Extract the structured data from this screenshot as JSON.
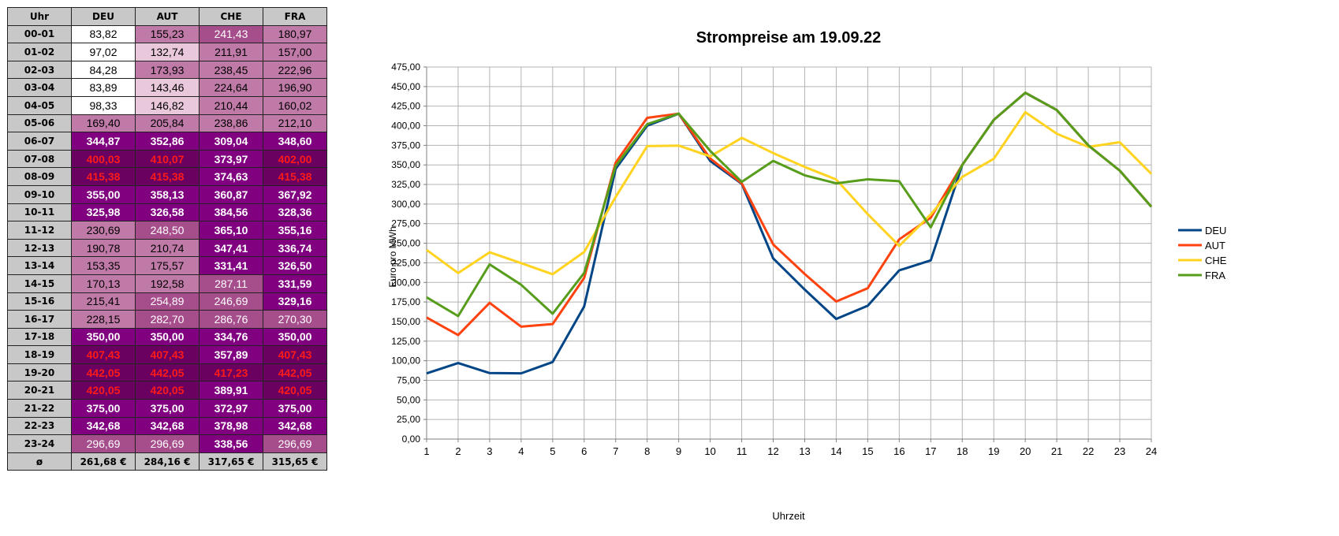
{
  "table": {
    "header": [
      "Uhr",
      "DEU",
      "AUT",
      "CHE",
      "FRA"
    ],
    "rows": [
      [
        "00-01",
        "83,82",
        "155,23",
        "241,43",
        "180,97"
      ],
      [
        "01-02",
        "97,02",
        "132,74",
        "211,91",
        "157,00"
      ],
      [
        "02-03",
        "84,28",
        "173,93",
        "238,45",
        "222,96"
      ],
      [
        "03-04",
        "83,89",
        "143,46",
        "224,64",
        "196,90"
      ],
      [
        "04-05",
        "98,33",
        "146,82",
        "210,44",
        "160,02"
      ],
      [
        "05-06",
        "169,40",
        "205,84",
        "238,86",
        "212,10"
      ],
      [
        "06-07",
        "344,87",
        "352,86",
        "309,04",
        "348,60"
      ],
      [
        "07-08",
        "400,03",
        "410,07",
        "373,97",
        "402,00"
      ],
      [
        "08-09",
        "415,38",
        "415,38",
        "374,63",
        "415,38"
      ],
      [
        "09-10",
        "355,00",
        "358,13",
        "360,87",
        "367,92"
      ],
      [
        "10-11",
        "325,98",
        "326,58",
        "384,56",
        "328,36"
      ],
      [
        "11-12",
        "230,69",
        "248,50",
        "365,10",
        "355,16"
      ],
      [
        "12-13",
        "190,78",
        "210,74",
        "347,41",
        "336,74"
      ],
      [
        "13-14",
        "153,35",
        "175,57",
        "331,41",
        "326,50"
      ],
      [
        "14-15",
        "170,13",
        "192,58",
        "287,11",
        "331,59"
      ],
      [
        "15-16",
        "215,41",
        "254,89",
        "246,69",
        "329,16"
      ],
      [
        "16-17",
        "228,15",
        "282,70",
        "286,76",
        "270,30"
      ],
      [
        "17-18",
        "350,00",
        "350,00",
        "334,76",
        "350,00"
      ],
      [
        "18-19",
        "407,43",
        "407,43",
        "357,89",
        "407,43"
      ],
      [
        "19-20",
        "442,05",
        "442,05",
        "417,23",
        "442,05"
      ],
      [
        "20-21",
        "420,05",
        "420,05",
        "389,91",
        "420,05"
      ],
      [
        "21-22",
        "375,00",
        "375,00",
        "372,97",
        "375,00"
      ],
      [
        "22-23",
        "342,68",
        "342,68",
        "378,98",
        "342,68"
      ],
      [
        "23-24",
        "296,69",
        "296,69",
        "338,56",
        "296,69"
      ]
    ],
    "footer": [
      "ø",
      "261,68 €",
      "284,16 €",
      "317,65 €",
      "315,65 €"
    ]
  },
  "chart_data": {
    "type": "line",
    "title": "Strompreise am 19.09.22",
    "xlabel": "Uhrzeit",
    "ylabel": "Euro pro MWh",
    "x": [
      1,
      2,
      3,
      4,
      5,
      6,
      7,
      8,
      9,
      10,
      11,
      12,
      13,
      14,
      15,
      16,
      17,
      18,
      19,
      20,
      21,
      22,
      23,
      24
    ],
    "xlim": [
      1,
      24
    ],
    "ylim": [
      0,
      475
    ],
    "ytick_step": 25,
    "ytick_labels": [
      "0,00",
      "25,00",
      "50,00",
      "75,00",
      "100,00",
      "125,00",
      "150,00",
      "175,00",
      "200,00",
      "225,00",
      "250,00",
      "275,00",
      "300,00",
      "325,00",
      "350,00",
      "375,00",
      "400,00",
      "425,00",
      "450,00",
      "475,00"
    ],
    "grid": true,
    "legend_position": "right",
    "series": [
      {
        "name": "DEU",
        "color": "#004586",
        "values": [
          83.82,
          97.02,
          84.28,
          83.89,
          98.33,
          169.4,
          344.87,
          400.03,
          415.38,
          355.0,
          325.98,
          230.69,
          190.78,
          153.35,
          170.13,
          215.41,
          228.15,
          350.0,
          407.43,
          442.05,
          420.05,
          375.0,
          342.68,
          296.69
        ]
      },
      {
        "name": "AUT",
        "color": "#ff420e",
        "values": [
          155.23,
          132.74,
          173.93,
          143.46,
          146.82,
          205.84,
          352.86,
          410.07,
          415.38,
          358.13,
          326.58,
          248.5,
          210.74,
          175.57,
          192.58,
          254.89,
          282.7,
          350.0,
          407.43,
          442.05,
          420.05,
          375.0,
          342.68,
          296.69
        ]
      },
      {
        "name": "CHE",
        "color": "#ffd320",
        "values": [
          241.43,
          211.91,
          238.45,
          224.64,
          210.44,
          238.86,
          309.04,
          373.97,
          374.63,
          360.87,
          384.56,
          365.1,
          347.41,
          331.41,
          287.11,
          246.69,
          286.76,
          334.76,
          357.89,
          417.23,
          389.91,
          372.97,
          378.98,
          338.56
        ]
      },
      {
        "name": "FRA",
        "color": "#579d1c",
        "values": [
          180.97,
          157.0,
          222.96,
          196.9,
          160.02,
          212.1,
          348.6,
          402.0,
          415.38,
          367.92,
          328.36,
          355.16,
          336.74,
          326.5,
          331.59,
          329.16,
          270.3,
          350.0,
          407.43,
          442.05,
          420.05,
          375.0,
          342.68,
          296.69
        ]
      }
    ]
  },
  "colors": {
    "header_bg": "#c8c8c8",
    "heat_low": "#ffffff",
    "heat_light": "#eac8dc",
    "heat_mid": "#c07aa8",
    "heat_mid_dark": "#a64d8c",
    "heat_high": "#800080",
    "heat_top": "#6a0060",
    "red_text": "#ff1a1a",
    "gridline": "#b3b3b3"
  }
}
